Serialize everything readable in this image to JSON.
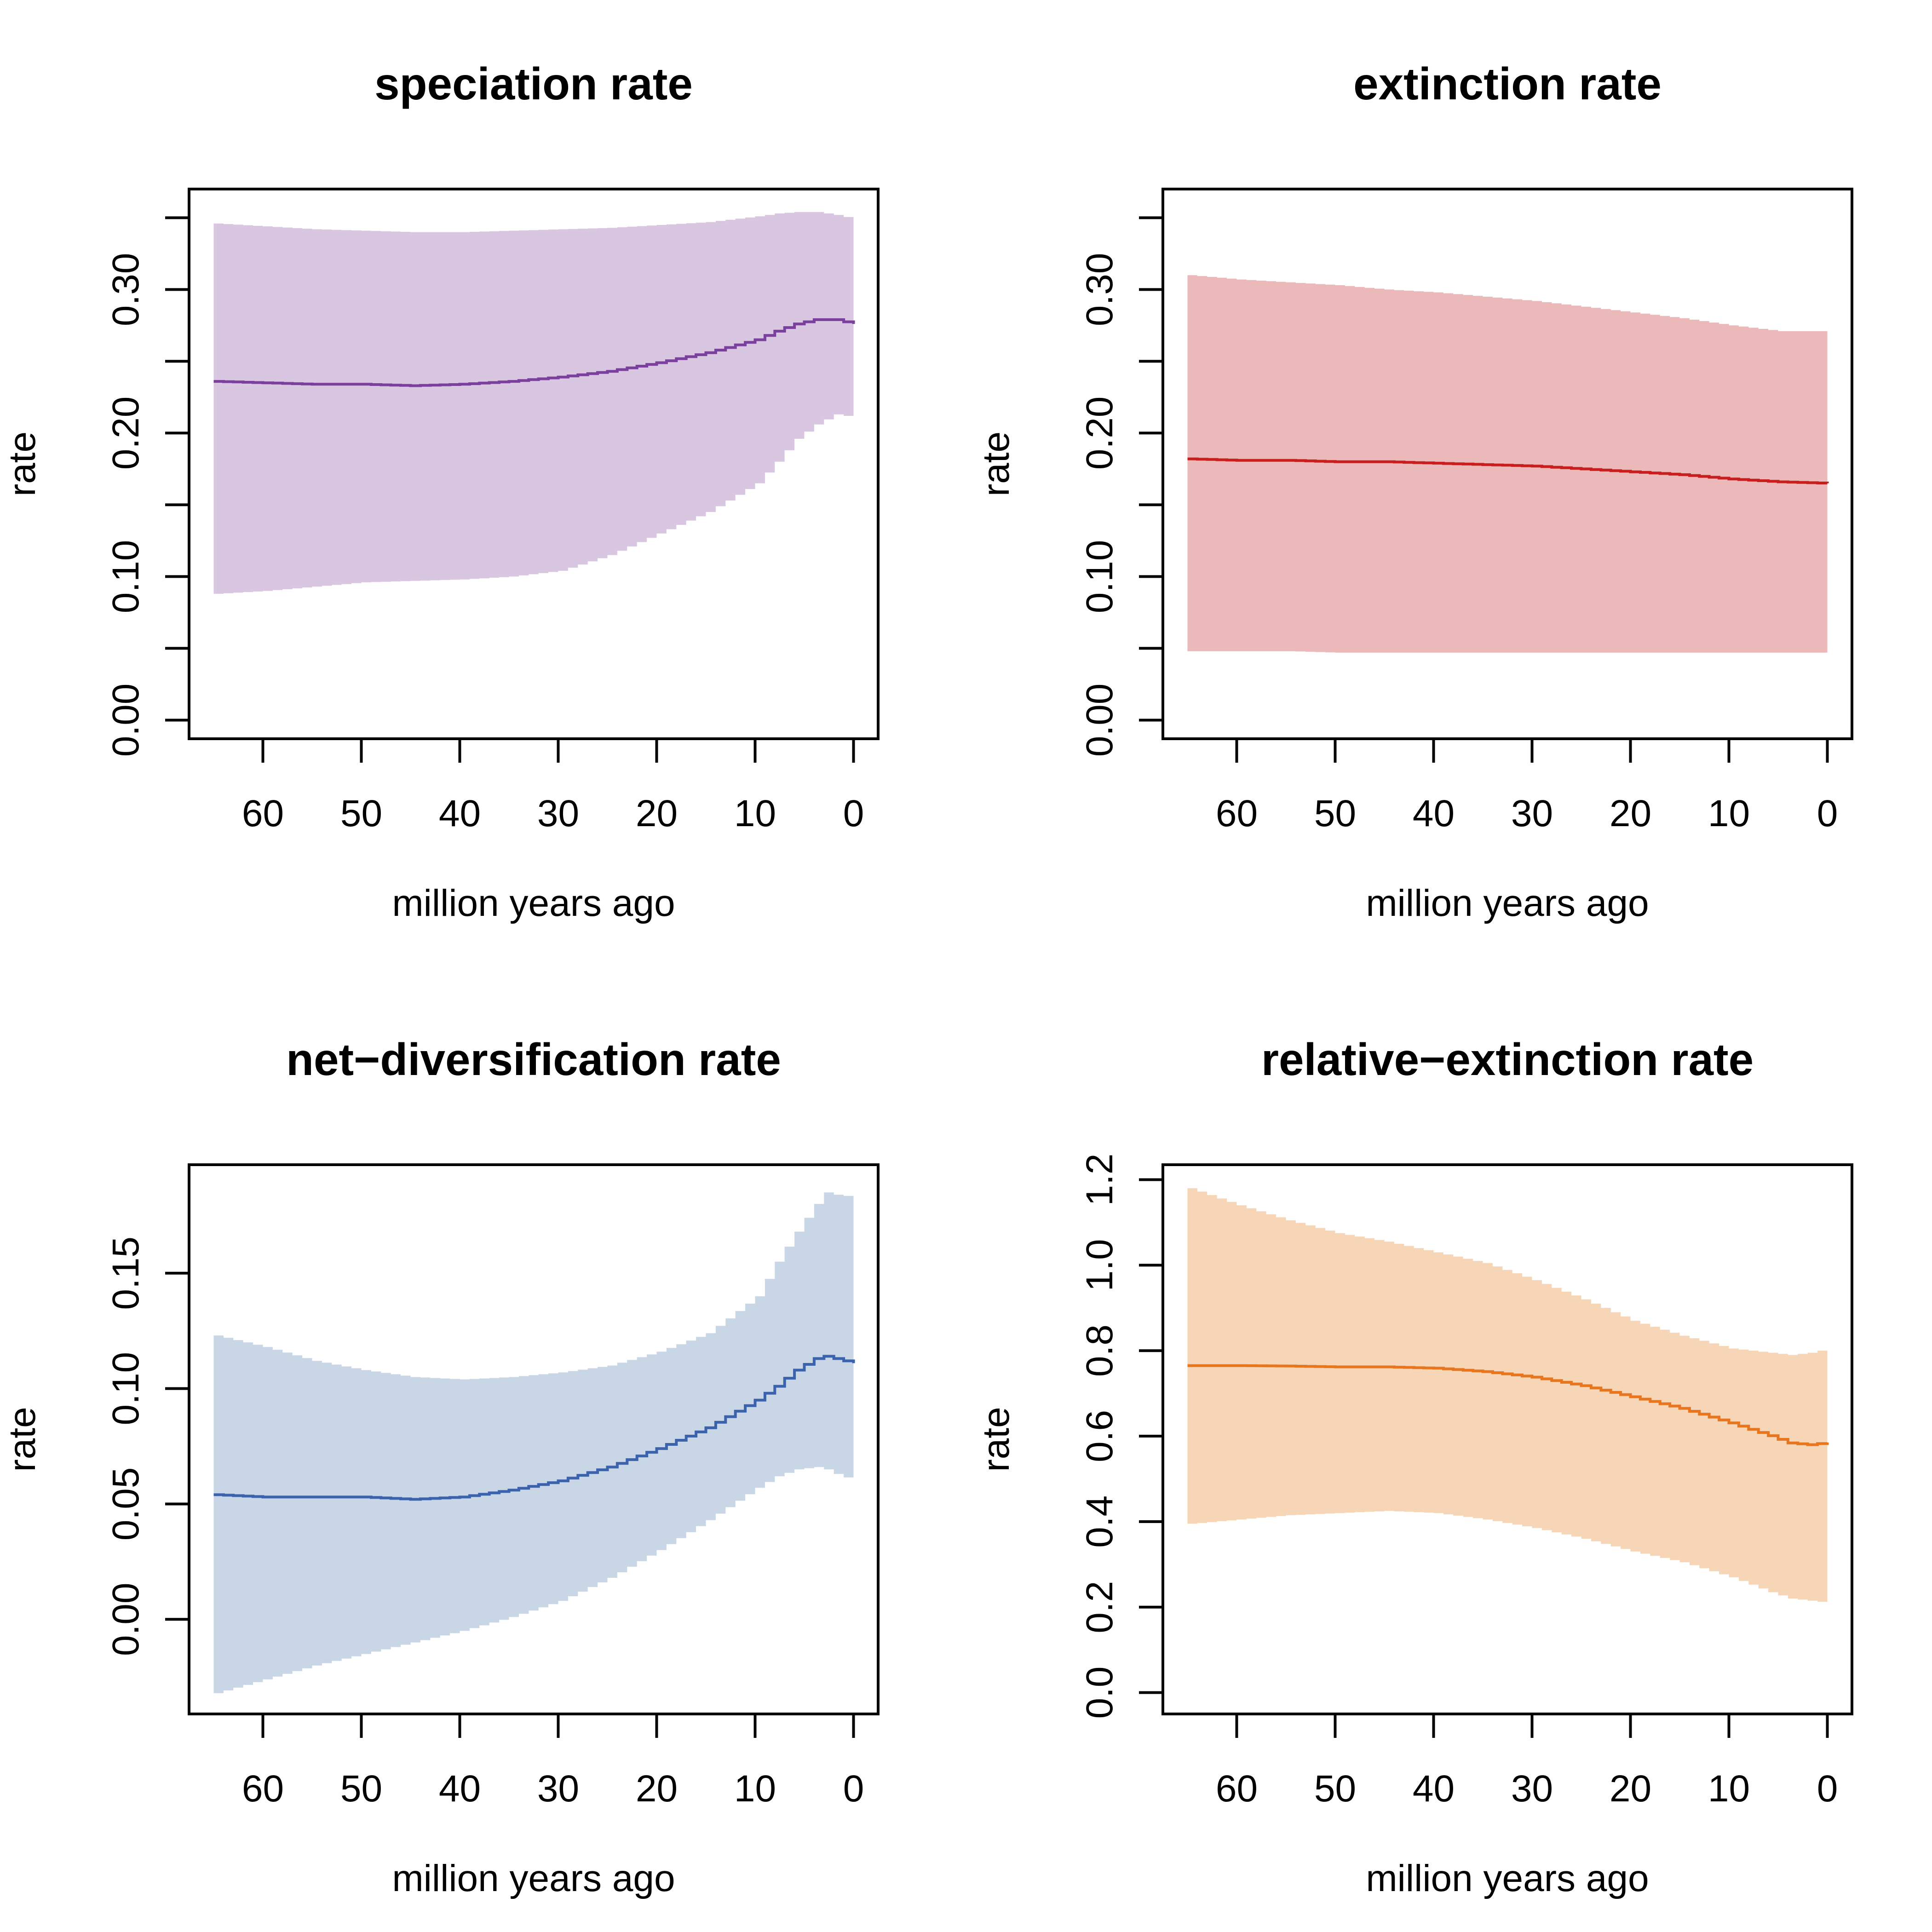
{
  "chart_data": [
    {
      "type": "area",
      "title": "speciation rate",
      "xlabel": "million years ago",
      "ylabel": "rate",
      "xlim": [
        67.5,
        -2.5
      ],
      "ylim": [
        -0.013,
        0.37
      ],
      "x_ticks": [
        60,
        50,
        40,
        30,
        20,
        10,
        0
      ],
      "y_ticks": [
        "0.00",
        "0.10",
        "0.20",
        "0.30"
      ],
      "y_minor_ticks": [
        0.05,
        0.15,
        0.25,
        0.35
      ],
      "colors": {
        "line": "#7b3f9e",
        "band": "#d9c7e1"
      },
      "x": [
        65,
        60,
        55,
        50,
        45,
        40,
        35,
        30,
        25,
        20,
        15,
        10,
        8,
        6,
        4,
        2,
        0
      ],
      "mean": [
        0.236,
        0.235,
        0.234,
        0.234,
        0.233,
        0.234,
        0.236,
        0.239,
        0.243,
        0.249,
        0.256,
        0.265,
        0.271,
        0.276,
        0.279,
        0.279,
        0.276
      ],
      "upper": [
        0.346,
        0.344,
        0.342,
        0.341,
        0.34,
        0.34,
        0.341,
        0.342,
        0.343,
        0.345,
        0.347,
        0.351,
        0.353,
        0.354,
        0.354,
        0.352,
        0.349
      ],
      "lower": [
        0.088,
        0.09,
        0.093,
        0.096,
        0.097,
        0.098,
        0.1,
        0.104,
        0.115,
        0.13,
        0.145,
        0.165,
        0.18,
        0.196,
        0.206,
        0.213,
        0.211
      ]
    },
    {
      "type": "area",
      "title": "extinction rate",
      "xlabel": "million years ago",
      "ylabel": "rate",
      "xlim": [
        67.5,
        -2.5
      ],
      "ylim": [
        -0.013,
        0.37
      ],
      "x_ticks": [
        60,
        50,
        40,
        30,
        20,
        10,
        0
      ],
      "y_ticks": [
        "0.00",
        "0.10",
        "0.20",
        "0.30"
      ],
      "y_minor_ticks": [
        0.05,
        0.15,
        0.25,
        0.35
      ],
      "colors": {
        "line": "#c81e1e",
        "band": "#ebb9ba"
      },
      "x": [
        65,
        60,
        55,
        50,
        45,
        40,
        35,
        30,
        25,
        20,
        15,
        10,
        5,
        0
      ],
      "mean": [
        0.182,
        0.181,
        0.181,
        0.18,
        0.18,
        0.179,
        0.178,
        0.177,
        0.175,
        0.173,
        0.171,
        0.168,
        0.166,
        0.165
      ],
      "upper": [
        0.31,
        0.307,
        0.305,
        0.303,
        0.3,
        0.298,
        0.295,
        0.292,
        0.288,
        0.284,
        0.28,
        0.275,
        0.271,
        0.271
      ],
      "lower": [
        0.048,
        0.048,
        0.048,
        0.047,
        0.047,
        0.047,
        0.047,
        0.047,
        0.047,
        0.047,
        0.047,
        0.047,
        0.047,
        0.047
      ]
    },
    {
      "type": "area",
      "title": "net−diversification rate",
      "xlabel": "million years ago",
      "ylabel": "rate",
      "xlim": [
        67.5,
        -2.5
      ],
      "ylim": [
        -0.041,
        0.197
      ],
      "x_ticks": [
        60,
        50,
        40,
        30,
        20,
        10,
        0
      ],
      "y_ticks": [
        "0.00",
        "0.05",
        "0.10",
        "0.15"
      ],
      "y_minor_ticks": [],
      "colors": {
        "line": "#3a62ad",
        "band": "#c8d6e6"
      },
      "x": [
        65,
        60,
        55,
        50,
        45,
        40,
        35,
        30,
        25,
        20,
        15,
        10,
        8,
        6,
        4,
        3,
        2,
        0
      ],
      "mean": [
        0.054,
        0.053,
        0.053,
        0.053,
        0.052,
        0.053,
        0.056,
        0.06,
        0.066,
        0.074,
        0.083,
        0.095,
        0.101,
        0.108,
        0.113,
        0.114,
        0.113,
        0.111
      ],
      "upper": [
        0.123,
        0.118,
        0.112,
        0.108,
        0.105,
        0.104,
        0.105,
        0.107,
        0.11,
        0.116,
        0.124,
        0.14,
        0.155,
        0.168,
        0.18,
        0.185,
        0.184,
        0.183
      ],
      "lower": [
        -0.032,
        -0.026,
        -0.02,
        -0.015,
        -0.01,
        -0.005,
        0.001,
        0.008,
        0.018,
        0.03,
        0.043,
        0.057,
        0.062,
        0.065,
        0.066,
        0.065,
        0.063,
        0.06
      ]
    },
    {
      "type": "area",
      "title": "relative−extinction rate",
      "xlabel": "million years ago",
      "ylabel": "rate",
      "xlim": [
        67.5,
        -2.5
      ],
      "ylim": [
        -0.05,
        1.235
      ],
      "x_ticks": [
        60,
        50,
        40,
        30,
        20,
        10,
        0
      ],
      "y_ticks": [
        "0.0",
        "0.2",
        "0.4",
        "0.6",
        "0.8",
        "1.0",
        "1.2"
      ],
      "y_minor_ticks": [],
      "colors": {
        "line": "#e8761e",
        "band": "#f6d6b6"
      },
      "x": [
        65,
        60,
        55,
        50,
        45,
        40,
        35,
        30,
        25,
        20,
        15,
        10,
        6,
        4,
        2,
        0
      ],
      "mean": [
        0.765,
        0.765,
        0.764,
        0.762,
        0.762,
        0.759,
        0.751,
        0.738,
        0.718,
        0.692,
        0.665,
        0.631,
        0.601,
        0.584,
        0.58,
        0.585
      ],
      "upper": [
        1.18,
        1.14,
        1.105,
        1.075,
        1.055,
        1.03,
        1.005,
        0.965,
        0.92,
        0.87,
        0.835,
        0.805,
        0.795,
        0.79,
        0.795,
        0.805
      ],
      "lower": [
        0.395,
        0.405,
        0.415,
        0.42,
        0.425,
        0.42,
        0.405,
        0.385,
        0.36,
        0.33,
        0.305,
        0.27,
        0.235,
        0.22,
        0.215,
        0.21
      ]
    }
  ]
}
